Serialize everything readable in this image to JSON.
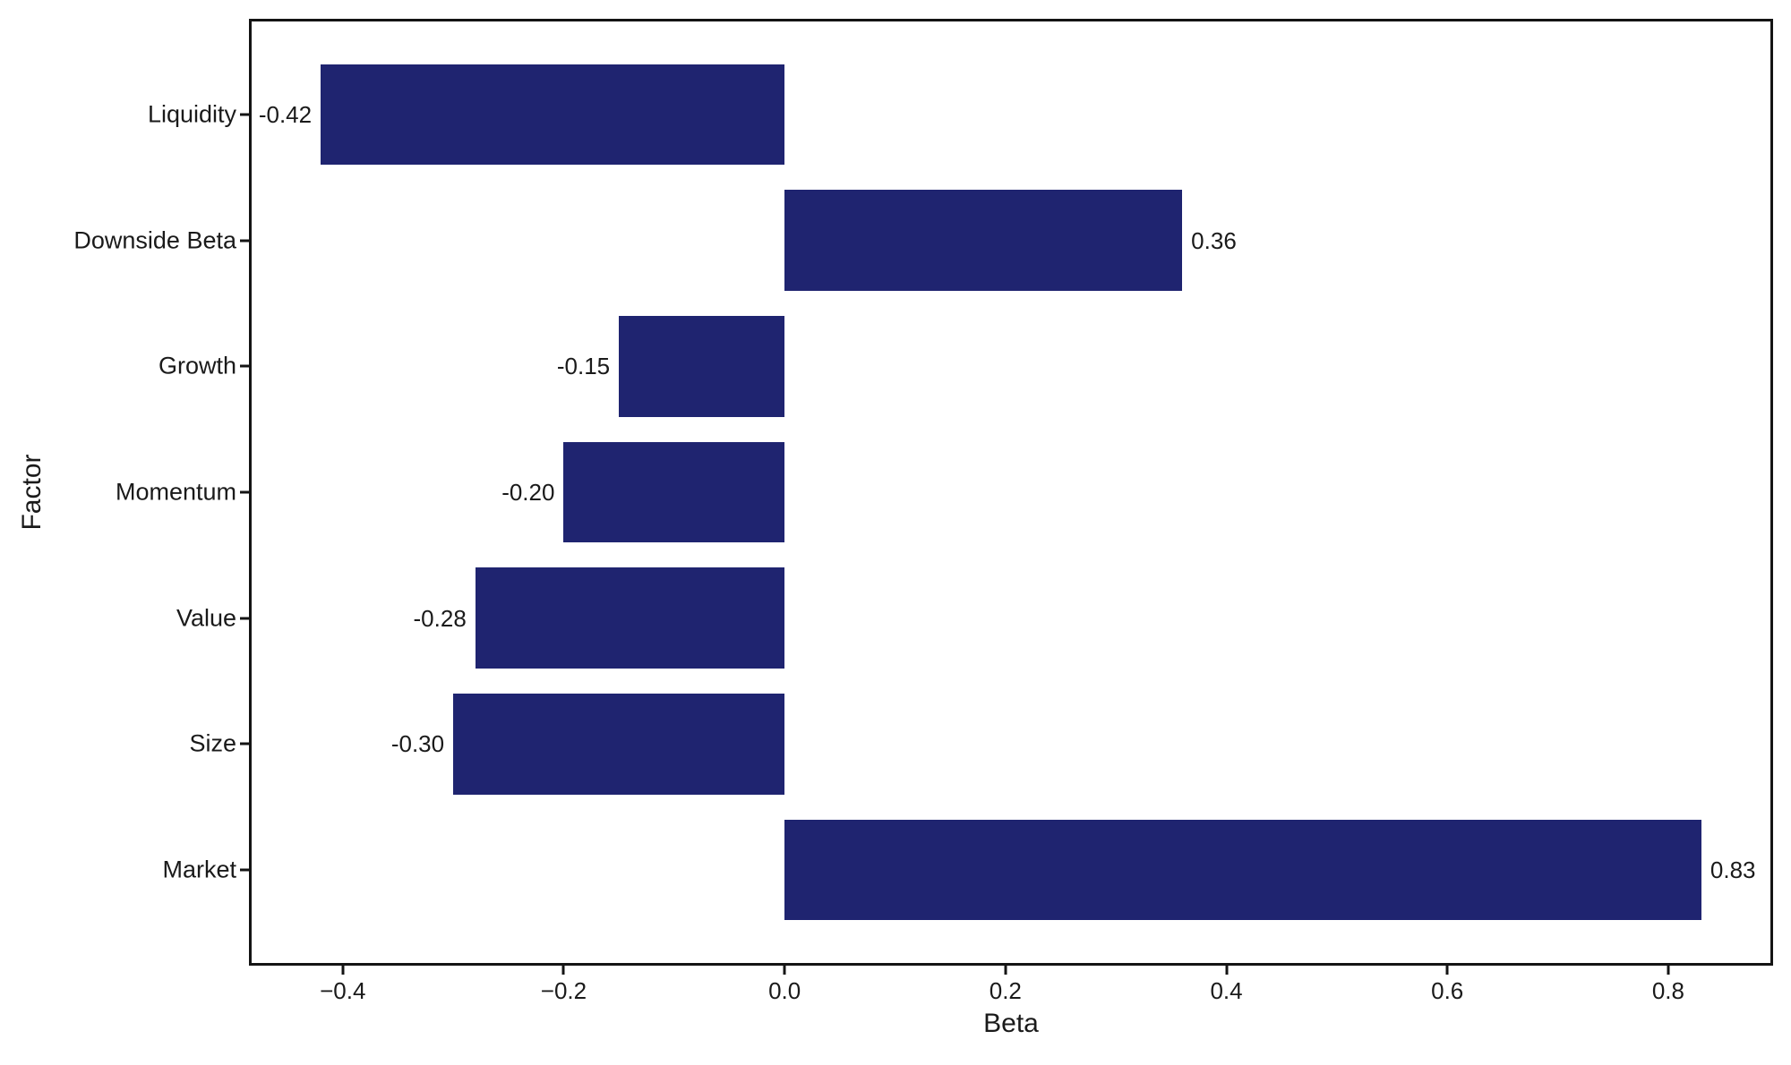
{
  "chart_data": {
    "type": "bar",
    "orientation": "horizontal",
    "title": "",
    "xlabel": "Beta",
    "ylabel": "Factor",
    "categories": [
      "Liquidity",
      "Downside Beta",
      "Growth",
      "Momentum",
      "Value",
      "Size",
      "Market"
    ],
    "values": [
      -0.42,
      0.36,
      -0.15,
      -0.2,
      -0.28,
      -0.3,
      0.83
    ],
    "bar_labels": [
      "-0.42",
      "0.36",
      "-0.15",
      "-0.20",
      "-0.28",
      "-0.30",
      "0.83"
    ],
    "xticks": [
      -0.4,
      -0.2,
      0.0,
      0.2,
      0.4,
      0.6,
      0.8
    ],
    "xtick_labels": [
      "−0.4",
      "−0.2",
      "0.0",
      "0.2",
      "0.4",
      "0.6",
      "0.8"
    ],
    "xlim": [
      -0.4825,
      0.8925
    ],
    "ylim": [
      -0.74,
      6.74
    ],
    "bar_height": 0.8,
    "bar_color": "#1f2470",
    "axis_color": "#141414",
    "text_color": "#1a1a1a",
    "background": "#ffffff",
    "grid": false,
    "legend": null
  }
}
